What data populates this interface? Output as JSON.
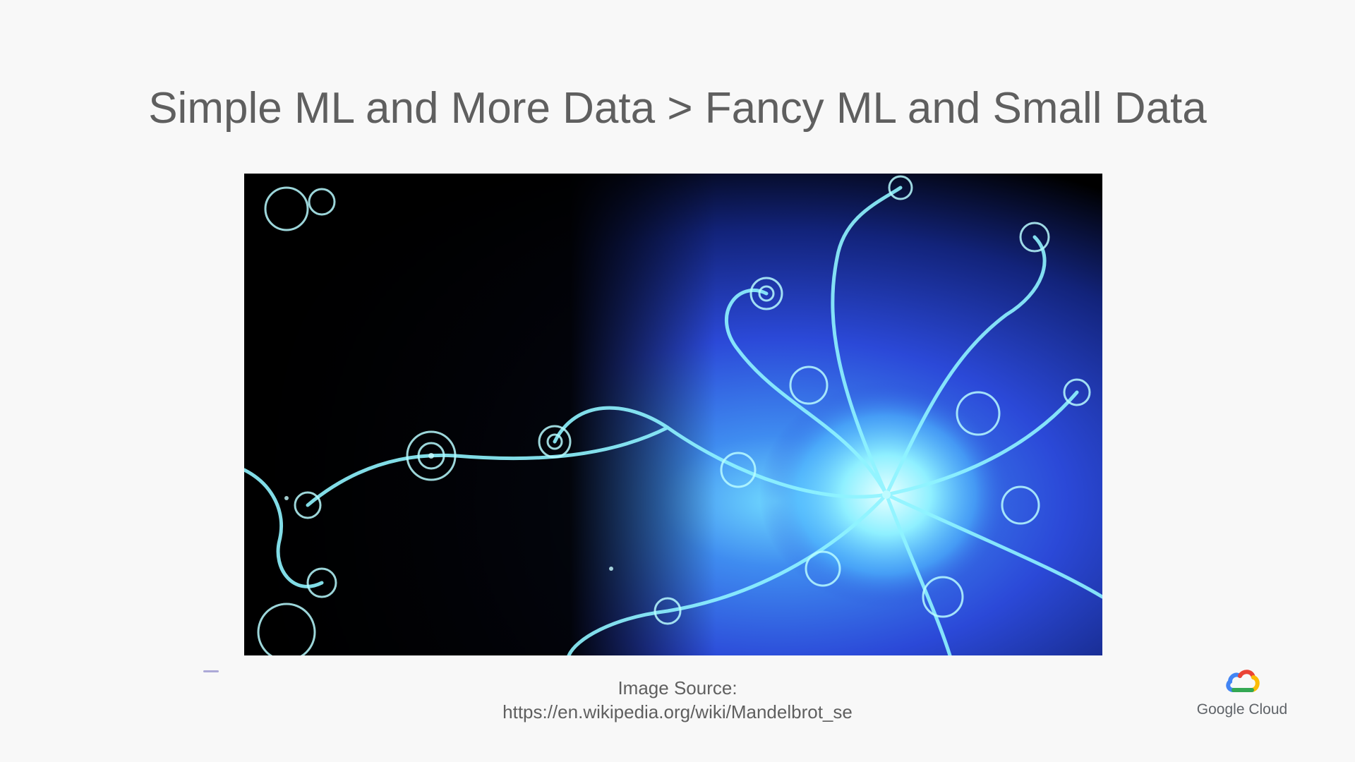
{
  "slide": {
    "title": "Simple ML and More Data > Fancy ML and Small Data",
    "image": {
      "description_icon": "mandelbrot-fractal-image"
    },
    "caption": {
      "line1": "Image Source:",
      "line2": "https://en.wikipedia.org/wiki/Mandelbrot_se"
    },
    "brand": {
      "name": "Google Cloud",
      "icon": "google-cloud-logo-icon"
    }
  },
  "colors": {
    "background": "#f8f8f8",
    "title_text": "#5f5f5f",
    "fractal_dark": "#000000",
    "fractal_blue": "#2f4fe0",
    "fractal_glow": "#7fe8ff"
  }
}
